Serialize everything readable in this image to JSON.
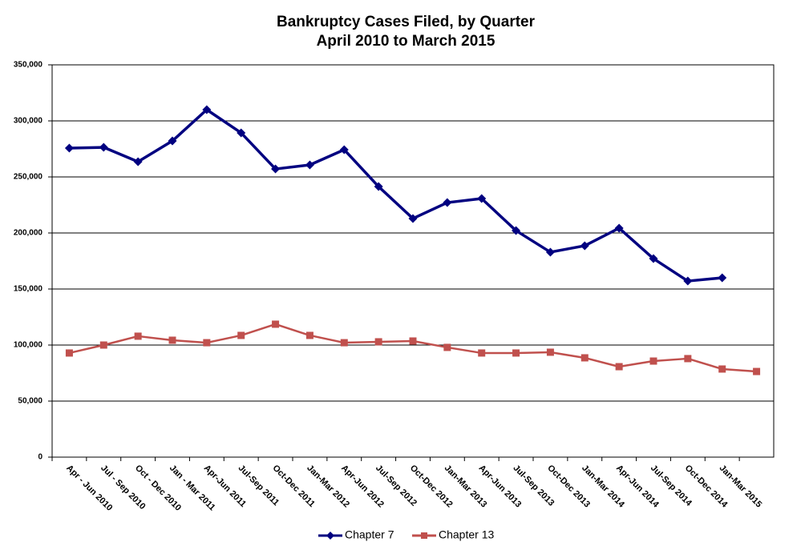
{
  "chart_data": {
    "type": "line",
    "title": "Bankruptcy Cases Filed, by Quarter",
    "subtitle": "April 2010 to March 2015",
    "categories": [
      "Apr - Jun 2010",
      "Jul - Sep 2010",
      "Oct - Dec 2010",
      "Jan - Mar 2011",
      "Apr-Jun 2011",
      "Jul-Sep 2011",
      "Oct-Dec 2011",
      "Jan-Mar 2012",
      "Apr-Jun 2012",
      "Jul-Sep 2012",
      "Oct-Dec 2012",
      "Jan-Mar 2013",
      "Apr-Jun 2013",
      "Jul-Sep 2013",
      "Oct-Dec 2013",
      "Jan-Mar 2014",
      "Apr-Jun 2014",
      "Jul-Sep 2014",
      "Oct-Dec 2014",
      "Jan-Mar 2015",
      null
    ],
    "series": [
      {
        "name": "Chapter 7",
        "color": "#000080",
        "marker": "diamond",
        "values": [
          275700,
          276400,
          263600,
          282100,
          310000,
          289300,
          257100,
          260700,
          274300,
          241400,
          212900,
          227100,
          230700,
          202100,
          182900,
          188600,
          204300,
          177100,
          157100,
          160000,
          null
        ]
      },
      {
        "name": "Chapter 13",
        "color": "#c0504d",
        "marker": "square",
        "values": [
          92900,
          100000,
          107900,
          104300,
          102100,
          108600,
          118600,
          108600,
          102100,
          102900,
          103600,
          97900,
          92900,
          92900,
          93600,
          88600,
          80700,
          85700,
          87900,
          78600,
          76400
        ]
      }
    ],
    "ylim": [
      0,
      350000
    ],
    "yticks": [
      0,
      {
        "value": 50000,
        "label": "50,000"
      },
      {
        "value": 100000,
        "label": "100,000"
      },
      {
        "value": 150000,
        "label": "150,000"
      },
      {
        "value": 200000,
        "label": "200,000"
      },
      {
        "value": 250000,
        "label": "250,000"
      },
      {
        "value": 300000,
        "label": "300,000"
      },
      {
        "value": 350000,
        "label": "350,000"
      }
    ],
    "grid": true,
    "legend": "bottom"
  }
}
